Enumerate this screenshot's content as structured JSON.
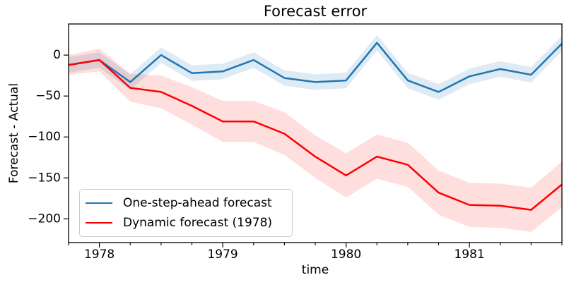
{
  "figure": {
    "title": "Forecast error",
    "xlabel": "time",
    "ylabel": "Forecast - Actual"
  },
  "legend": {
    "items": [
      {
        "label": "One-step-ahead forecast",
        "color": "#1f77b4"
      },
      {
        "label": "Dynamic forecast (1978)",
        "color": "#ff0000"
      }
    ]
  },
  "colors": {
    "one_step_line": "#1f77b4",
    "dynamic_line": "#ff0000",
    "axes_frame": "#000000",
    "legend_border": "#cccccc"
  },
  "chart_data": {
    "type": "line",
    "title": "Forecast error",
    "xlabel": "time",
    "ylabel": "Forecast - Actual",
    "grid": false,
    "legend_position": "lower left",
    "xlim": [
      1977.75,
      1981.75
    ],
    "ylim": [
      -229,
      38
    ],
    "x": [
      1977.75,
      1978.0,
      1978.25,
      1978.5,
      1978.75,
      1979.0,
      1979.25,
      1979.5,
      1979.75,
      1980.0,
      1980.25,
      1980.5,
      1980.75,
      1981.0,
      1981.25,
      1981.5,
      1981.75
    ],
    "series": [
      {
        "name": "One-step-ahead forecast",
        "color": "#1f77b4",
        "values": [
          -12,
          -6,
          -33,
          0,
          -22,
          -20,
          -6,
          -28,
          -33,
          -31,
          15,
          -31,
          -45,
          -26,
          -17,
          -24,
          14
        ],
        "band_halfwidth": 9.5,
        "band_alpha": 0.15
      },
      {
        "name": "Dynamic forecast (1978)",
        "color": "#ff0000",
        "values": [
          -12,
          -6,
          -40,
          -45,
          -62,
          -81,
          -81,
          -96,
          -124,
          -147,
          -124,
          -134,
          -168,
          -183,
          -184,
          -189,
          -158
        ],
        "band_halfwidth": [
          12,
          14,
          17,
          20,
          23,
          25,
          25,
          26,
          26,
          27,
          27,
          27,
          27,
          27,
          27,
          27,
          28
        ],
        "band_alpha": 0.13
      }
    ],
    "xticks": {
      "major": [
        1978,
        1979,
        1980,
        1981
      ],
      "labels": [
        "1978",
        "1979",
        "1980",
        "1981"
      ],
      "minor_step": 0.25
    },
    "yticks": {
      "major": [
        0,
        -50,
        -100,
        -150,
        -200
      ],
      "labels": [
        "0",
        "−50",
        "−100",
        "−150",
        "−200"
      ]
    }
  }
}
